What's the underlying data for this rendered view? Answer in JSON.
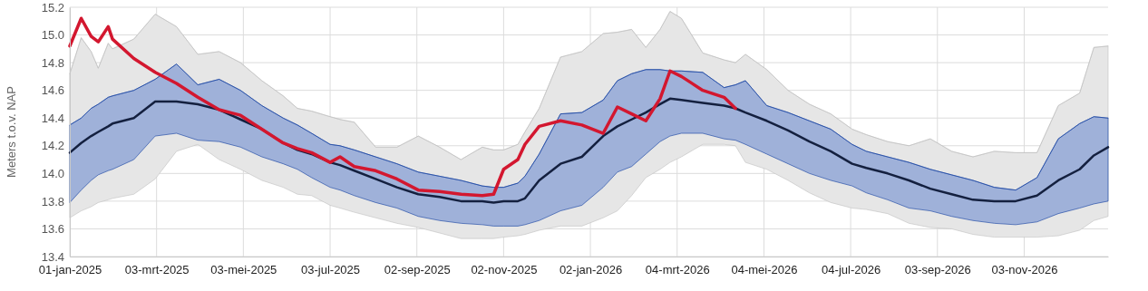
{
  "chart_data": {
    "type": "line",
    "ylabel": "Meters t.o.v. NAP",
    "x": [
      "2025-01-01",
      "2025-01-09",
      "2025-01-16",
      "2025-01-21",
      "2025-01-28",
      "2025-01-31",
      "2025-02-15",
      "2025-03-02",
      "2025-03-17",
      "2025-04-01",
      "2025-04-16",
      "2025-05-01",
      "2025-05-16",
      "2025-05-31",
      "2025-06-10",
      "2025-06-20",
      "2025-07-03",
      "2025-07-10",
      "2025-07-20",
      "2025-08-04",
      "2025-08-19",
      "2025-09-03",
      "2025-09-18",
      "2025-10-03",
      "2025-10-18",
      "2025-10-26",
      "2025-11-02",
      "2025-11-12",
      "2025-11-17",
      "2025-11-27",
      "2025-12-12",
      "2025-12-27",
      "2026-01-11",
      "2026-01-21",
      "2026-01-31",
      "2026-02-10",
      "2026-02-20",
      "2026-02-27",
      "2026-03-07",
      "2026-03-22",
      "2026-04-06",
      "2026-04-14",
      "2026-04-21",
      "2026-05-06",
      "2026-05-21",
      "2026-06-05",
      "2026-06-20",
      "2026-07-05",
      "2026-07-15",
      "2026-07-30",
      "2026-08-14",
      "2026-08-29",
      "2026-09-13",
      "2026-09-28",
      "2026-10-13",
      "2026-10-28",
      "2026-11-12",
      "2026-11-27",
      "2026-12-12",
      "2026-12-22",
      "2027-01-01"
    ],
    "series": [
      {
        "color": "#c0c0c0",
        "values": [
          14.72,
          14.98,
          14.88,
          14.76,
          14.94,
          14.9,
          14.97,
          15.15,
          15.06,
          14.86,
          14.88,
          14.8,
          14.67,
          14.56,
          14.47,
          14.45,
          14.41,
          14.39,
          14.37,
          14.19,
          14.19,
          14.27,
          14.19,
          14.1,
          14.19,
          14.17,
          14.17,
          14.21,
          14.3,
          14.47,
          14.84,
          14.88,
          15.01,
          15.02,
          15.04,
          14.91,
          15.04,
          15.17,
          15.12,
          14.87,
          14.82,
          14.8,
          14.86,
          14.75,
          14.6,
          14.5,
          14.43,
          14.32,
          14.28,
          14.23,
          14.2,
          14.25,
          14.16,
          14.12,
          14.16,
          14.15,
          14.15,
          14.49,
          14.58,
          14.91,
          14.92
        ],
        "upper": [
          14.72,
          14.98,
          14.88,
          14.76,
          14.94,
          14.9,
          14.97,
          15.15,
          15.06,
          14.86,
          14.88,
          14.8,
          14.67,
          14.56,
          14.47,
          14.45,
          14.41,
          14.39,
          14.37,
          14.19,
          14.19,
          14.27,
          14.19,
          14.1,
          14.19,
          14.17,
          14.17,
          14.21,
          14.3,
          14.47,
          14.84,
          14.88,
          15.01,
          15.02,
          15.04,
          14.91,
          15.04,
          15.17,
          15.12,
          14.87,
          14.82,
          14.8,
          14.86,
          14.75,
          14.6,
          14.5,
          14.43,
          14.32,
          14.28,
          14.23,
          14.2,
          14.25,
          14.16,
          14.12,
          14.16,
          14.15,
          14.15,
          14.49,
          14.58,
          14.91,
          14.92
        ],
        "lower": [
          13.68,
          13.73,
          13.76,
          13.79,
          13.81,
          13.82,
          13.85,
          13.96,
          14.16,
          14.21,
          14.1,
          14.03,
          13.95,
          13.9,
          13.85,
          13.84,
          13.77,
          13.75,
          13.72,
          13.68,
          13.64,
          13.61,
          13.57,
          13.53,
          13.53,
          13.53,
          13.54,
          13.55,
          13.56,
          13.59,
          13.62,
          13.62,
          13.68,
          13.73,
          13.84,
          13.97,
          14.03,
          14.08,
          14.12,
          14.21,
          14.21,
          14.2,
          14.08,
          14.03,
          13.95,
          13.86,
          13.79,
          13.75,
          13.74,
          13.71,
          13.64,
          13.61,
          13.6,
          13.56,
          13.54,
          13.54,
          13.54,
          13.55,
          13.59,
          13.66,
          13.69
        ]
      },
      {
        "color": "#0f3ca0",
        "values": [
          14.35,
          14.4,
          14.47,
          14.5,
          14.55,
          14.56,
          14.6,
          14.68,
          14.79,
          14.64,
          14.68,
          14.6,
          14.49,
          14.4,
          14.35,
          14.29,
          14.21,
          14.2,
          14.17,
          14.12,
          14.07,
          14.01,
          13.98,
          13.95,
          13.91,
          13.9,
          13.9,
          13.93,
          13.98,
          14.14,
          14.43,
          14.44,
          14.53,
          14.67,
          14.72,
          14.75,
          14.75,
          14.74,
          14.74,
          14.73,
          14.62,
          14.64,
          14.67,
          14.49,
          14.44,
          14.38,
          14.32,
          14.21,
          14.16,
          14.12,
          14.08,
          14.03,
          13.99,
          13.95,
          13.9,
          13.88,
          13.97,
          14.25,
          14.36,
          14.41,
          14.4
        ],
        "upper": [
          14.35,
          14.4,
          14.47,
          14.5,
          14.55,
          14.56,
          14.6,
          14.68,
          14.79,
          14.64,
          14.68,
          14.6,
          14.49,
          14.4,
          14.35,
          14.29,
          14.21,
          14.2,
          14.17,
          14.12,
          14.07,
          14.01,
          13.98,
          13.95,
          13.91,
          13.9,
          13.9,
          13.93,
          13.98,
          14.14,
          14.43,
          14.44,
          14.53,
          14.67,
          14.72,
          14.75,
          14.75,
          14.74,
          14.74,
          14.73,
          14.62,
          14.64,
          14.67,
          14.49,
          14.44,
          14.38,
          14.32,
          14.21,
          14.16,
          14.12,
          14.08,
          14.03,
          13.99,
          13.95,
          13.9,
          13.88,
          13.97,
          14.25,
          14.36,
          14.41,
          14.4
        ],
        "lower": [
          13.79,
          13.88,
          13.95,
          13.99,
          14.02,
          14.03,
          14.1,
          14.27,
          14.29,
          14.24,
          14.23,
          14.19,
          14.12,
          14.07,
          14.03,
          13.97,
          13.9,
          13.88,
          13.84,
          13.79,
          13.75,
          13.69,
          13.66,
          13.64,
          13.63,
          13.62,
          13.62,
          13.62,
          13.63,
          13.66,
          13.73,
          13.77,
          13.9,
          14.01,
          14.05,
          14.14,
          14.23,
          14.27,
          14.29,
          14.29,
          14.25,
          14.24,
          14.21,
          14.14,
          14.07,
          14.0,
          13.95,
          13.91,
          13.86,
          13.81,
          13.75,
          13.73,
          13.69,
          13.66,
          13.64,
          13.63,
          13.65,
          13.71,
          13.75,
          13.78,
          13.8
        ]
      },
      {
        "type": "line",
        "color": "#14203f",
        "values": [
          14.15,
          14.22,
          14.27,
          14.3,
          14.34,
          14.36,
          14.4,
          14.52,
          14.52,
          14.5,
          14.46,
          14.39,
          14.32,
          14.22,
          14.17,
          14.14,
          14.08,
          14.06,
          14.02,
          13.96,
          13.9,
          13.85,
          13.83,
          13.8,
          13.8,
          13.79,
          13.8,
          13.8,
          13.82,
          13.95,
          14.07,
          14.12,
          14.27,
          14.34,
          14.39,
          14.44,
          14.5,
          14.54,
          14.53,
          14.51,
          14.49,
          14.47,
          14.44,
          14.38,
          14.31,
          14.23,
          14.16,
          14.07,
          14.04,
          14.0,
          13.95,
          13.89,
          13.85,
          13.81,
          13.8,
          13.8,
          13.84,
          13.95,
          14.03,
          14.13,
          14.19
        ]
      },
      {
        "type": "line",
        "color": "#d3172f",
        "x": [
          "2025-01-01",
          "2025-01-09",
          "2025-01-16",
          "2025-01-21",
          "2025-01-28",
          "2025-01-31",
          "2025-02-15",
          "2025-03-02",
          "2025-03-17",
          "2025-04-01",
          "2025-04-16",
          "2025-05-01",
          "2025-05-16",
          "2025-05-31",
          "2025-06-10",
          "2025-06-20",
          "2025-07-03",
          "2025-07-10",
          "2025-07-20",
          "2025-08-04",
          "2025-08-19",
          "2025-09-03",
          "2025-09-18",
          "2025-10-03",
          "2025-10-18",
          "2025-10-26",
          "2025-11-02",
          "2025-11-12",
          "2025-11-17",
          "2025-11-27",
          "2025-12-12",
          "2025-12-27",
          "2026-01-11",
          "2026-01-21",
          "2026-01-31",
          "2026-02-10",
          "2026-02-20",
          "2026-02-27",
          "2026-03-07",
          "2026-03-22",
          "2026-04-06",
          "2026-04-14"
        ],
        "values": [
          14.92,
          15.12,
          14.99,
          14.95,
          15.06,
          14.97,
          14.83,
          14.73,
          14.65,
          14.55,
          14.46,
          14.42,
          14.32,
          14.22,
          14.18,
          14.15,
          14.08,
          14.12,
          14.05,
          14.02,
          13.96,
          13.88,
          13.87,
          13.85,
          13.84,
          13.85,
          14.03,
          14.1,
          14.21,
          14.34,
          14.38,
          14.35,
          14.29,
          14.48,
          14.43,
          14.38,
          14.54,
          14.74,
          14.7,
          14.6,
          14.55,
          14.47
        ]
      }
    ],
    "xlim": [
      "2025-01-01",
      "2027-01-01"
    ],
    "xticks": [
      {
        "value": "2025-01-01",
        "label": "01-jan-2025"
      },
      {
        "value": "2025-03-03",
        "label": "03-mrt-2025"
      },
      {
        "value": "2025-05-03",
        "label": "03-mei-2025"
      },
      {
        "value": "2025-07-03",
        "label": "03-jul-2025"
      },
      {
        "value": "2025-09-02",
        "label": "02-sep-2025"
      },
      {
        "value": "2025-11-02",
        "label": "02-nov-2025"
      },
      {
        "value": "2026-01-02",
        "label": "02-jan-2026"
      },
      {
        "value": "2026-03-04",
        "label": "04-mrt-2026"
      },
      {
        "value": "2026-05-04",
        "label": "04-mei-2026"
      },
      {
        "value": "2026-07-04",
        "label": "04-jul-2026"
      },
      {
        "value": "2026-09-03",
        "label": "03-sep-2026"
      },
      {
        "value": "2026-11-03",
        "label": "03-nov-2026"
      }
    ],
    "ylim": [
      13.4,
      15.2
    ],
    "yticks": [
      {
        "value": 13.4,
        "label": "13.4"
      },
      {
        "value": 13.6,
        "label": "13.6"
      },
      {
        "value": 13.8,
        "label": "13.8"
      },
      {
        "value": 14.0,
        "label": "14.0"
      },
      {
        "value": 14.2,
        "label": "14.2"
      },
      {
        "value": 14.4,
        "label": "14.4"
      },
      {
        "value": 14.6,
        "label": "14.6"
      },
      {
        "value": 14.8,
        "label": "14.8"
      },
      {
        "value": 15.0,
        "label": "15.0"
      },
      {
        "value": 15.2,
        "label": "15.2"
      }
    ],
    "grid": true,
    "line_style": "solid",
    "marker": "none"
  }
}
